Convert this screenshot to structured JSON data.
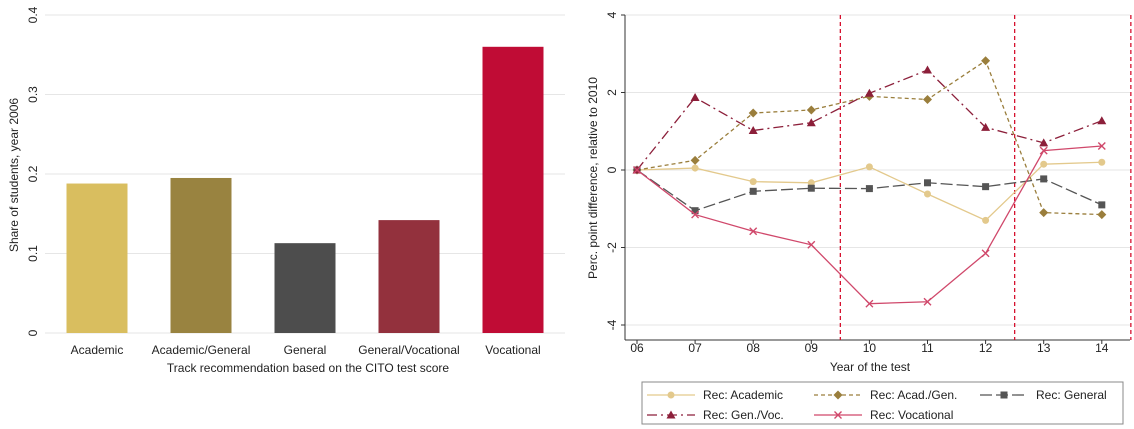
{
  "chart_data": [
    {
      "type": "bar",
      "xlabel": "Track recommendation based on the CITO test score",
      "ylabel": "Share of students, year 2006",
      "ylim": [
        0,
        0.4
      ],
      "yticks": [
        "0",
        "0.1",
        "0.2",
        "0.3",
        "0.4"
      ],
      "yticks_values": [
        0,
        0.1,
        0.2,
        0.3,
        0.4
      ],
      "categories": [
        "Academic",
        "Academic/General",
        "General",
        "General/Vocational",
        "Vocational"
      ],
      "values": [
        0.188,
        0.195,
        0.113,
        0.142,
        0.36
      ],
      "colors": [
        "#d9be5f",
        "#998340",
        "#4d4d4d",
        "#93313d",
        "#c00c35"
      ],
      "grid": true
    },
    {
      "type": "line",
      "xlabel": "Year of the test",
      "ylabel": "Perc. point difference, relative to 2010",
      "x": [
        "06",
        "07",
        "08",
        "09",
        "10",
        "11",
        "12",
        "13",
        "14"
      ],
      "ylim": [
        -4,
        4
      ],
      "yticks": [
        "-4",
        "-2",
        "0",
        "2",
        "4"
      ],
      "yticks_values": [
        -4,
        -2,
        0,
        2,
        4
      ],
      "grid": true,
      "reference_lines_x": [
        3.5,
        6.5,
        8.5
      ],
      "legend_position": "bottom",
      "series": [
        {
          "name": "Rec: Academic",
          "values": [
            0,
            0.05,
            -0.3,
            -0.33,
            0.08,
            -0.62,
            -1.3,
            0.15,
            0.2
          ],
          "color": "#e3c98c",
          "dash": "",
          "marker": "circle"
        },
        {
          "name": "Rec: Acad./Gen.",
          "values": [
            0,
            0.25,
            1.47,
            1.55,
            1.9,
            1.82,
            2.82,
            -1.1,
            -1.15
          ],
          "color": "#9a7e3c",
          "dash": "4,3",
          "marker": "diamond"
        },
        {
          "name": "Rec: General",
          "values": [
            0,
            -1.05,
            -0.55,
            -0.47,
            -0.48,
            -0.33,
            -0.43,
            -0.23,
            -0.9
          ],
          "color": "#555555",
          "dash": "12,4",
          "marker": "square"
        },
        {
          "name": "Rec: Gen./Voc.",
          "values": [
            0,
            1.87,
            1.02,
            1.22,
            1.98,
            2.58,
            1.1,
            0.7,
            1.27
          ],
          "color": "#8c1f3a",
          "dash": "10,4,2,4",
          "marker": "triangle"
        },
        {
          "name": "Rec: Vocational",
          "values": [
            0,
            -1.15,
            -1.58,
            -1.93,
            -3.45,
            -3.4,
            -2.15,
            0.5,
            0.62
          ],
          "color": "#d0486b",
          "dash": "",
          "marker": "x"
        }
      ]
    }
  ]
}
